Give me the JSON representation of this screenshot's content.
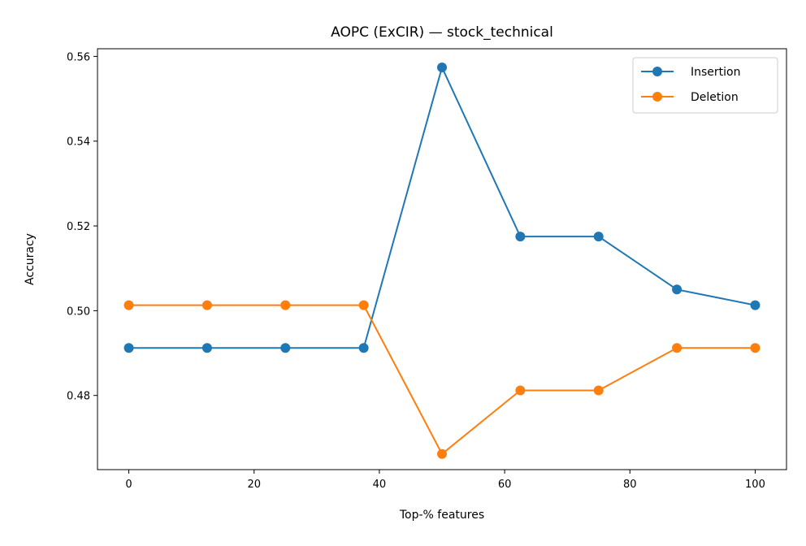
{
  "chart_data": {
    "type": "line",
    "title": "AOPC (ExCIR) — stock_technical",
    "xlabel": "Top-% features",
    "ylabel": "Accuracy",
    "x": [
      0,
      12.5,
      25,
      37.5,
      50,
      62.5,
      75,
      87.5,
      100
    ],
    "xlim": [
      -5,
      105
    ],
    "ylim": [
      0.4625,
      0.5618
    ],
    "xticks": [
      0,
      20,
      40,
      60,
      80,
      100
    ],
    "xtick_labels": [
      "0",
      "20",
      "40",
      "60",
      "80",
      "100"
    ],
    "yticks": [
      0.48,
      0.5,
      0.52,
      0.54,
      0.56
    ],
    "ytick_labels": [
      "0.48",
      "0.50",
      "0.52",
      "0.54",
      "0.56"
    ],
    "grid": false,
    "legend_position": "top-right",
    "series": [
      {
        "name": "Insertion",
        "color": "#1f77b4",
        "values": [
          0.4912,
          0.4912,
          0.4912,
          0.4912,
          0.5574,
          0.5175,
          0.5175,
          0.505,
          0.5013
        ]
      },
      {
        "name": "Deletion",
        "color": "#ff7f0e",
        "values": [
          0.5013,
          0.5013,
          0.5013,
          0.5013,
          0.4662,
          0.4812,
          0.4812,
          0.4912,
          0.4912
        ]
      }
    ]
  }
}
